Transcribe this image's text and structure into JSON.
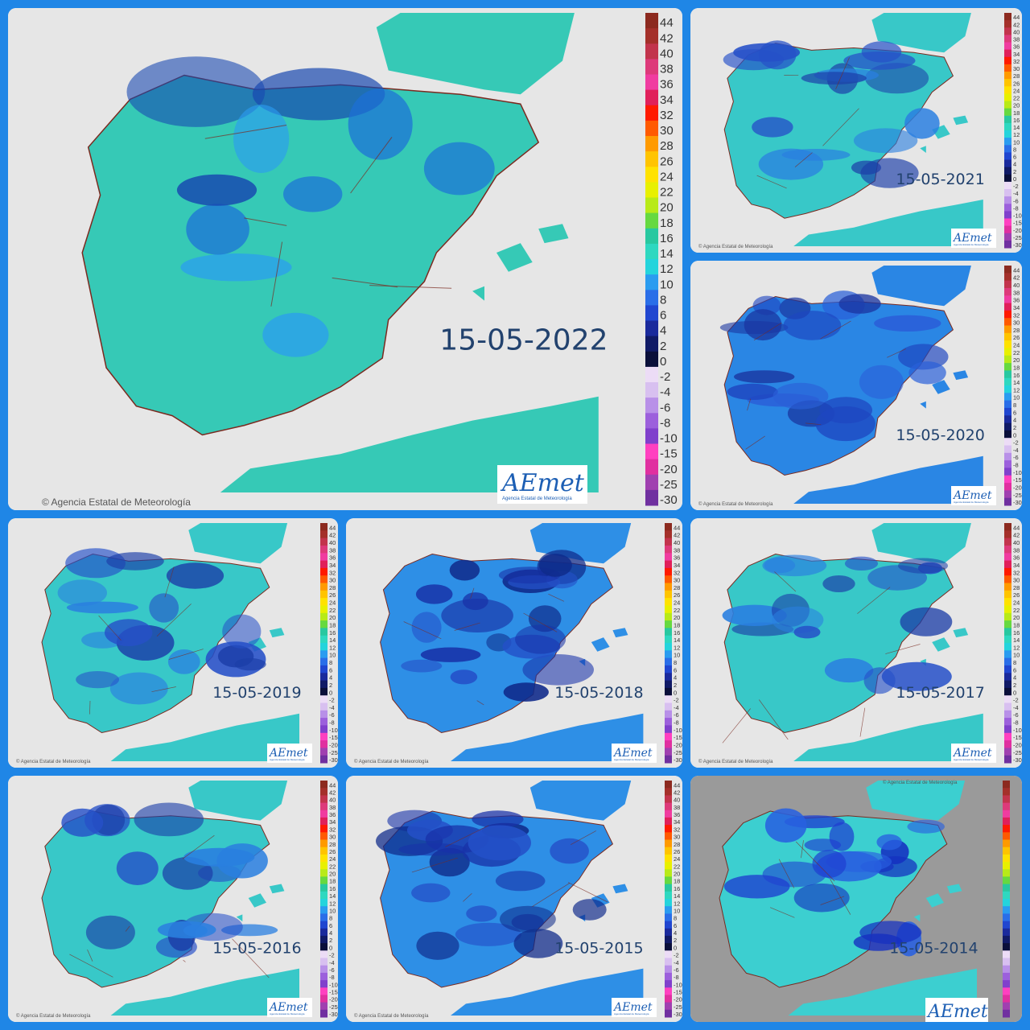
{
  "collage": {
    "background_color": "#1f86e6",
    "copyright": "© Agencia Estatal de Meteorología",
    "logo_text": "AEmet",
    "logo_subtitle": "Agencia Estatal de Meteorología"
  },
  "legend": {
    "ticks": [
      "44",
      "42",
      "40",
      "38",
      "36",
      "34",
      "32",
      "30",
      "28",
      "26",
      "24",
      "22",
      "20",
      "18",
      "16",
      "14",
      "12",
      "10",
      "8",
      "6",
      "4",
      "2",
      "0",
      "-2",
      "-4",
      "-6",
      "-8",
      "-10",
      "-15",
      "-20",
      "-25",
      "-30"
    ],
    "colors": [
      "#8c2a1f",
      "#a4302a",
      "#c2344c",
      "#dd3a7a",
      "#f03ca0",
      "#e0205a",
      "#ff1a00",
      "#ff5a00",
      "#ff9a00",
      "#ffc400",
      "#ffe200",
      "#e8f000",
      "#b8ea18",
      "#66d940",
      "#28c8a0",
      "#2ed8c0",
      "#24d4dc",
      "#2a9cf0",
      "#2a6ee8",
      "#2046d0",
      "#1a2a9c",
      "#101a66",
      "#0a0f3a",
      "#ecdcf6",
      "#d8c0f0",
      "#b890e8",
      "#9c60dc",
      "#8040cc",
      "#ff40c0",
      "#e030a0",
      "#a040b0",
      "#7030a0"
    ]
  },
  "maps": [
    {
      "id": "2022",
      "date": "15-05-2022",
      "theme": "light"
    },
    {
      "id": "2021",
      "date": "15-05-2021",
      "theme": "blue"
    },
    {
      "id": "2020",
      "date": "15-05-2020",
      "theme": "blue2"
    },
    {
      "id": "2019",
      "date": "15-05-2019",
      "theme": "blue"
    },
    {
      "id": "2018",
      "date": "15-05-2018",
      "theme": "dark"
    },
    {
      "id": "2017",
      "date": "15-05-2017",
      "theme": "blue"
    },
    {
      "id": "2016",
      "date": "15-05-2016",
      "theme": "blue"
    },
    {
      "id": "2015",
      "date": "15-05-2015",
      "theme": "dark"
    },
    {
      "id": "2014",
      "date": "15-05-2014",
      "theme": "grey"
    }
  ]
}
